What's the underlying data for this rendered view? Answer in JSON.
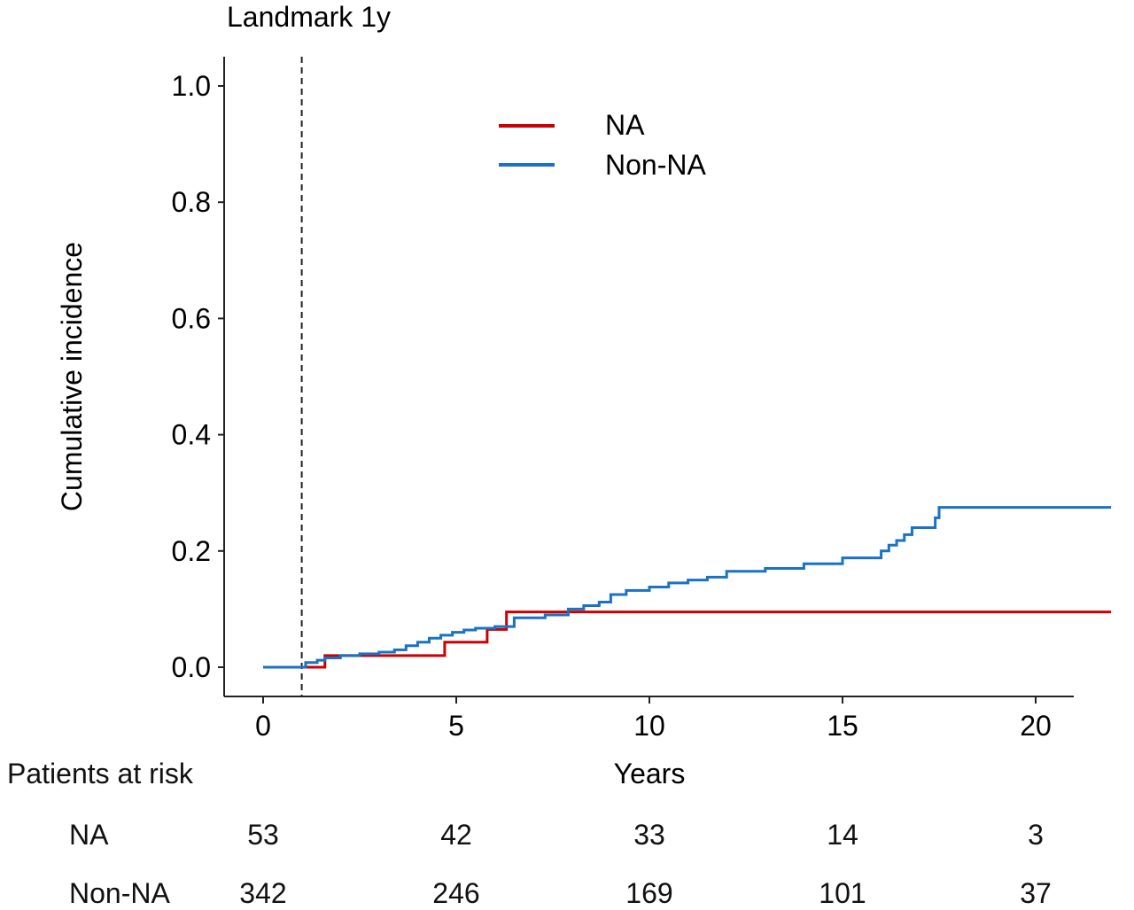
{
  "chart_data": {
    "type": "line",
    "title": "Landmark 1y",
    "xlabel": "Years",
    "ylabel": "Cumulative incidence",
    "xlim": [
      -1,
      21
    ],
    "ylim": [
      -0.05,
      1.05
    ],
    "x_ticks": [
      "0",
      "5",
      "10",
      "15",
      "20"
    ],
    "y_ticks": [
      "0.0",
      "0.2",
      "0.4",
      "0.6",
      "0.8",
      "1.0"
    ],
    "landmark_x": 1,
    "legend_position": "top-center",
    "step": true,
    "series": [
      {
        "name": "NA",
        "color": "#cc0000",
        "x": [
          0,
          1.6,
          4.7,
          5.8,
          6.3,
          22
        ],
        "y": [
          0.0,
          0.02,
          0.043,
          0.065,
          0.095,
          0.095
        ]
      },
      {
        "name": "Non-NA",
        "color": "#1a72c4",
        "x": [
          0,
          1.1,
          1.4,
          1.6,
          2.0,
          2.5,
          3.0,
          3.4,
          3.7,
          4.0,
          4.3,
          4.6,
          4.9,
          5.2,
          5.5,
          6.0,
          6.5,
          7.3,
          7.9,
          8.3,
          8.7,
          9.0,
          9.4,
          10.0,
          10.5,
          11.0,
          11.5,
          12.0,
          13.0,
          14.0,
          15.0,
          16.0,
          16.2,
          16.4,
          16.6,
          16.8,
          17.4,
          17.5,
          22
        ],
        "y": [
          0.0,
          0.008,
          0.012,
          0.016,
          0.02,
          0.023,
          0.026,
          0.03,
          0.037,
          0.043,
          0.05,
          0.055,
          0.06,
          0.064,
          0.067,
          0.07,
          0.085,
          0.09,
          0.1,
          0.106,
          0.112,
          0.125,
          0.132,
          0.138,
          0.145,
          0.15,
          0.155,
          0.165,
          0.17,
          0.178,
          0.188,
          0.2,
          0.21,
          0.218,
          0.228,
          0.24,
          0.257,
          0.275,
          0.275
        ]
      }
    ]
  },
  "risk_table": {
    "title": "Patients at risk",
    "times": [
      0,
      5,
      10,
      15,
      20
    ],
    "rows": [
      {
        "label": "NA",
        "values": [
          "53",
          "42",
          "33",
          "14",
          "3"
        ]
      },
      {
        "label": "Non-NA",
        "values": [
          "342",
          "246",
          "169",
          "101",
          "37"
        ]
      }
    ]
  }
}
